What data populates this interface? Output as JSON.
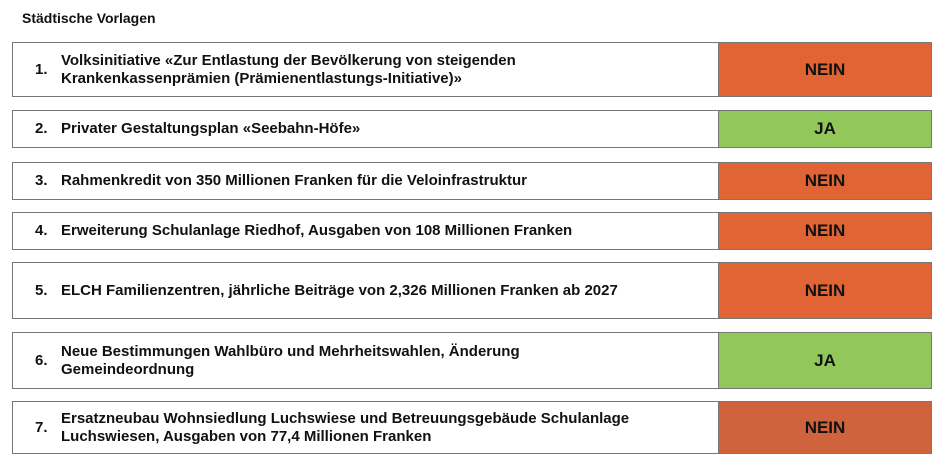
{
  "title": "Städtische Vorlagen",
  "colors": {
    "nein": "#E06434",
    "ja": "#92C85A",
    "nein_last": "#CF633D"
  },
  "items": [
    {
      "number": "1.",
      "text": "Volksinitiative «Zur Entlastung der Bevölkerung von steigenden Krankenkassenprämien (Prämienentlastungs-Initiative)»",
      "result": "NEIN"
    },
    {
      "number": "2.",
      "text": "Privater Gestaltungsplan «Seebahn-Höfe»",
      "result": "JA"
    },
    {
      "number": "3.",
      "text": "Rahmenkredit von 350 Millionen Franken für die Veloinfrastruktur",
      "result": "NEIN"
    },
    {
      "number": "4.",
      "text": "Erweiterung Schulanlage Riedhof, Ausgaben von 108 Millionen Franken",
      "result": "NEIN"
    },
    {
      "number": "5.",
      "text": "ELCH Familienzentren, jährliche Beiträge von 2,326 Millionen Franken ab 2027",
      "result": "NEIN"
    },
    {
      "number": "6.",
      "text": "Neue Bestimmungen Wahlbüro und Mehrheitswahlen, Änderung Gemeindeordnung",
      "result": "JA"
    },
    {
      "number": "7.",
      "text": "Ersatzneubau Wohnsiedlung Luchswiese und Betreuungsgebäude Schulanlage Luchswiesen, Ausgaben von 77,4 Millionen Franken",
      "result": "NEIN"
    }
  ]
}
